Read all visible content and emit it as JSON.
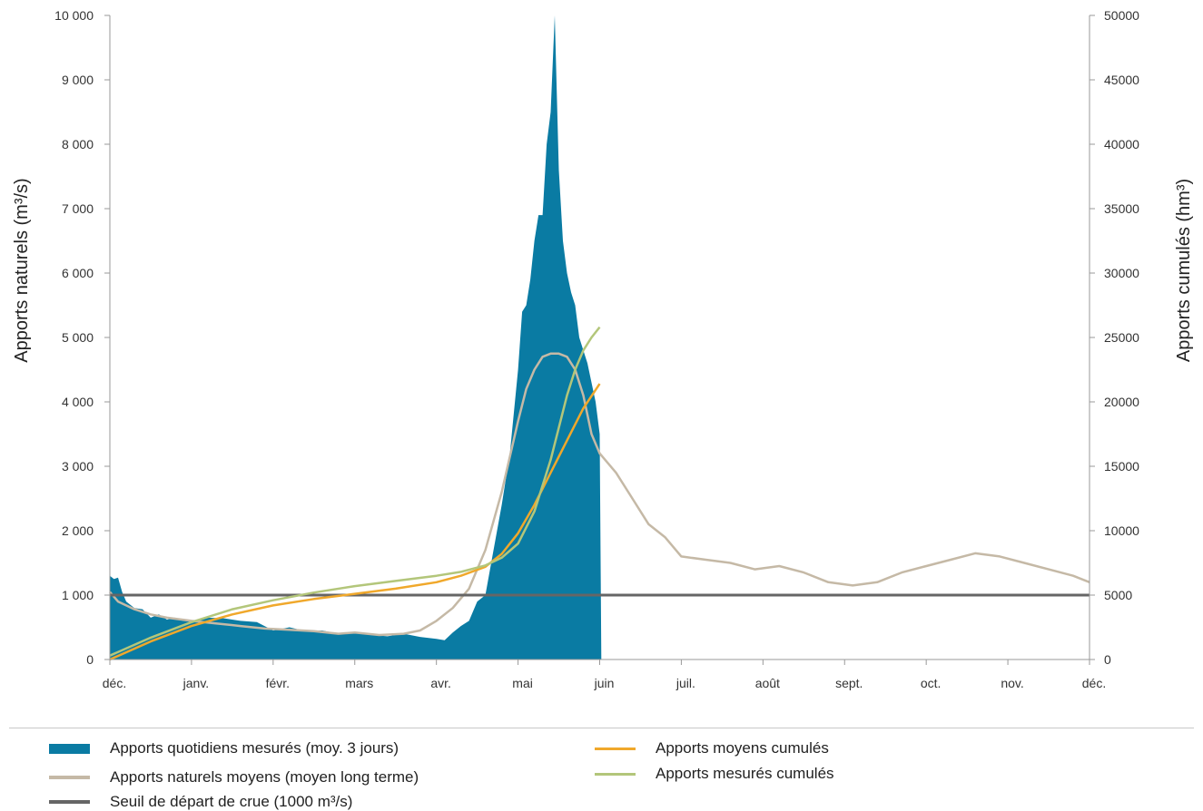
{
  "chart_data": {
    "type": "area",
    "x_categories": [
      "déc.",
      "janv.",
      "févr.",
      "mars",
      "avr.",
      "mai",
      "juin",
      "juil.",
      "août",
      "sept.",
      "oct.",
      "nov.",
      "déc."
    ],
    "y_left": {
      "label": "Apports naturels (m³/s)",
      "range": [
        0,
        10000
      ],
      "ticks": [
        0,
        1000,
        2000,
        3000,
        4000,
        5000,
        6000,
        7000,
        8000,
        9000,
        10000
      ],
      "tick_labels": [
        "0",
        "1 000",
        "2 000",
        "3 000",
        "4 000",
        "5 000",
        "6 000",
        "7 000",
        "8 000",
        "9 000",
        "10 000"
      ]
    },
    "y_right": {
      "label": "Apports cumulés (hm³)",
      "range": [
        0,
        50000
      ],
      "ticks": [
        0,
        5000,
        10000,
        15000,
        20000,
        25000,
        30000,
        35000,
        40000,
        45000,
        50000
      ],
      "tick_labels": [
        "0",
        "5000",
        "10000",
        "15000",
        "20000",
        "25000",
        "30000",
        "35000",
        "40000",
        "45000",
        "50000"
      ]
    },
    "grid": false,
    "legend_placement": "bottom",
    "series": [
      {
        "name": "Apports quotidiens mesurés (moy. 3 jours)",
        "kind": "area",
        "axis": "left",
        "color": "#0a7ba3",
        "x": [
          0,
          0.05,
          0.1,
          0.15,
          0.2,
          0.3,
          0.4,
          0.5,
          0.6,
          0.7,
          0.8,
          0.9,
          1,
          1.2,
          1.4,
          1.6,
          1.8,
          2,
          2.2,
          2.4,
          2.6,
          2.8,
          3,
          3.2,
          3.4,
          3.6,
          3.8,
          4,
          4.1,
          4.2,
          4.3,
          4.4,
          4.5,
          4.6,
          4.7,
          4.8,
          4.9,
          5,
          5.05,
          5.1,
          5.15,
          5.2,
          5.25,
          5.3,
          5.35,
          5.4,
          5.45,
          5.5,
          5.55,
          5.6,
          5.65,
          5.7,
          5.75,
          5.8,
          5.85,
          5.9,
          5.95,
          6,
          6.02
        ],
        "y": [
          1300,
          1250,
          1270,
          1050,
          900,
          800,
          780,
          650,
          700,
          620,
          650,
          600,
          600,
          650,
          640,
          600,
          580,
          450,
          500,
          440,
          450,
          400,
          420,
          380,
          360,
          400,
          350,
          320,
          300,
          420,
          520,
          600,
          900,
          1000,
          1700,
          2400,
          3200,
          4500,
          5400,
          5500,
          5900,
          6500,
          6900,
          6900,
          8000,
          8500,
          10000,
          7600,
          6500,
          6000,
          5700,
          5500,
          5000,
          4800,
          4600,
          4300,
          4000,
          3500,
          0
        ]
      },
      {
        "name": "Apports naturels moyens (moyen long terme)",
        "kind": "line",
        "axis": "left",
        "color": "#c5b9a6",
        "x": [
          0,
          0.1,
          0.3,
          0.5,
          0.7,
          1,
          1.3,
          1.6,
          1.9,
          2.2,
          2.5,
          2.8,
          3,
          3.3,
          3.6,
          3.8,
          4,
          4.2,
          4.4,
          4.6,
          4.8,
          5,
          5.1,
          5.2,
          5.3,
          5.4,
          5.5,
          5.6,
          5.7,
          5.8,
          5.9,
          6,
          6.2,
          6.4,
          6.6,
          6.8,
          7,
          7.3,
          7.6,
          7.9,
          8.2,
          8.5,
          8.8,
          9.1,
          9.4,
          9.7,
          10,
          10.3,
          10.6,
          10.9,
          11.2,
          11.5,
          11.8,
          12
        ],
        "y": [
          1050,
          900,
          780,
          700,
          650,
          600,
          560,
          520,
          480,
          460,
          440,
          400,
          420,
          380,
          400,
          450,
          600,
          800,
          1100,
          1700,
          2600,
          3700,
          4200,
          4500,
          4700,
          4750,
          4750,
          4700,
          4500,
          4100,
          3500,
          3200,
          2900,
          2500,
          2100,
          1900,
          1600,
          1550,
          1500,
          1400,
          1450,
          1350,
          1200,
          1150,
          1200,
          1350,
          1450,
          1550,
          1650,
          1600,
          1500,
          1400,
          1300,
          1200
        ]
      },
      {
        "name": "Seuil de départ de crue (1000 m³/s)",
        "kind": "line",
        "axis": "left",
        "color": "#666666",
        "x": [
          0,
          12
        ],
        "y": [
          1000,
          1000
        ]
      },
      {
        "name": "Apports moyens cumulés",
        "kind": "line",
        "axis": "right",
        "color": "#f0a82b",
        "x": [
          0,
          0.5,
          1,
          1.5,
          2,
          2.5,
          3,
          3.5,
          4,
          4.3,
          4.6,
          4.8,
          5,
          5.2,
          5.4,
          5.6,
          5.8,
          6
        ],
        "y": [
          0,
          1400,
          2600,
          3500,
          4200,
          4700,
          5100,
          5500,
          6000,
          6500,
          7200,
          8200,
          9800,
          12000,
          14500,
          17000,
          19500,
          21400
        ]
      },
      {
        "name": "Apports mesurés cumulés",
        "kind": "line",
        "axis": "right",
        "color": "#b3c67a",
        "x": [
          0,
          0.5,
          1,
          1.5,
          2,
          2.5,
          3,
          3.5,
          4,
          4.3,
          4.6,
          4.8,
          5,
          5.2,
          5.4,
          5.6,
          5.7,
          5.8,
          5.9,
          6
        ],
        "y": [
          300,
          1700,
          2900,
          3900,
          4600,
          5200,
          5700,
          6100,
          6500,
          6800,
          7300,
          7900,
          9000,
          11500,
          15500,
          20500,
          22500,
          24000,
          25000,
          25800
        ]
      }
    ]
  }
}
